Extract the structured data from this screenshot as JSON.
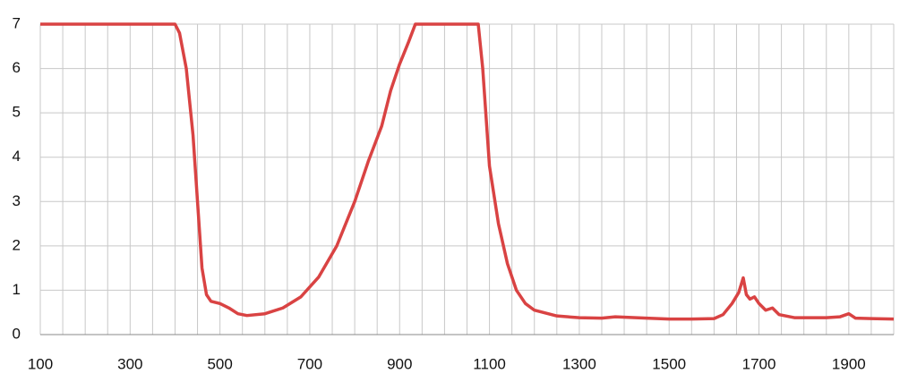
{
  "chart_data": {
    "type": "line",
    "x": [
      100,
      400,
      410,
      425,
      440,
      450,
      460,
      470,
      480,
      500,
      520,
      540,
      560,
      600,
      640,
      680,
      720,
      760,
      800,
      830,
      860,
      880,
      900,
      920,
      935,
      1075,
      1085,
      1100,
      1120,
      1140,
      1160,
      1180,
      1200,
      1250,
      1300,
      1350,
      1380,
      1450,
      1500,
      1550,
      1600,
      1620,
      1640,
      1655,
      1665,
      1672,
      1680,
      1690,
      1700,
      1715,
      1730,
      1745,
      1760,
      1780,
      1850,
      1880,
      1900,
      1915,
      1950,
      2000
    ],
    "series": [
      {
        "color": "#d94343",
        "values": [
          7,
          7,
          6.8,
          6,
          4.5,
          3,
          1.5,
          0.9,
          0.75,
          0.7,
          0.6,
          0.47,
          0.43,
          0.47,
          0.6,
          0.85,
          1.3,
          2.0,
          3.0,
          3.9,
          4.7,
          5.5,
          6.1,
          6.6,
          7,
          7,
          6,
          3.8,
          2.5,
          1.6,
          1.0,
          0.7,
          0.55,
          0.42,
          0.38,
          0.37,
          0.4,
          0.37,
          0.35,
          0.35,
          0.36,
          0.45,
          0.7,
          0.95,
          1.28,
          0.9,
          0.8,
          0.85,
          0.7,
          0.55,
          0.6,
          0.45,
          0.42,
          0.38,
          0.38,
          0.4,
          0.47,
          0.37,
          0.36,
          0.35
        ]
      }
    ],
    "xlim": [
      100,
      2000
    ],
    "ylim": [
      0,
      7
    ],
    "xticks": [
      100,
      300,
      500,
      700,
      900,
      1100,
      1300,
      1500,
      1700,
      1900
    ],
    "x_minor_ticks": [
      150,
      200,
      250,
      350,
      400,
      450,
      550,
      600,
      650,
      750,
      800,
      850,
      950,
      1000,
      1050,
      1150,
      1200,
      1250,
      1350,
      1400,
      1450,
      1550,
      1600,
      1650,
      1750,
      1800,
      1850,
      1950,
      2000
    ],
    "yticks": [
      0,
      1,
      2,
      3,
      4,
      5,
      6,
      7
    ],
    "grid": true
  }
}
